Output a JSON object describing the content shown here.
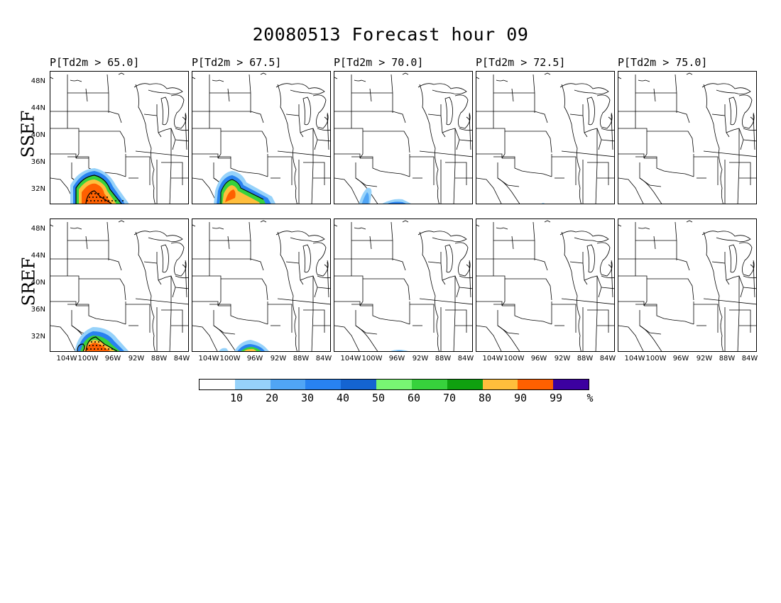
{
  "title": "20080513 Forecast hour 09",
  "panel_titles": [
    "P[Td2m > 65.0]",
    "P[Td2m > 67.5]",
    "P[Td2m > 70.0]",
    "P[Td2m > 72.5]",
    "P[Td2m > 75.0]"
  ],
  "rows": [
    {
      "label": "SSEF"
    },
    {
      "label": "SREF"
    }
  ],
  "lat_labels": [
    "48N",
    "44N",
    "40N",
    "36N",
    "32N"
  ],
  "lon_labels": [
    "104W",
    "100W",
    "96W",
    "92W",
    "88W",
    "84W"
  ],
  "colorbar": {
    "colors": [
      "#ffffff",
      "#96d2fa",
      "#50a5f5",
      "#2882f0",
      "#1464d2",
      "#78f573",
      "#37d23c",
      "#0fa00f",
      "#ffbe3c",
      "#ff6000",
      "#3c00a0"
    ],
    "labels": [
      "10",
      "20",
      "30",
      "40",
      "50",
      "60",
      "70",
      "80",
      "90",
      "99",
      "%"
    ]
  },
  "icons": {
    "map": "us-state-outline-map",
    "dots": "stipple-dots"
  }
}
